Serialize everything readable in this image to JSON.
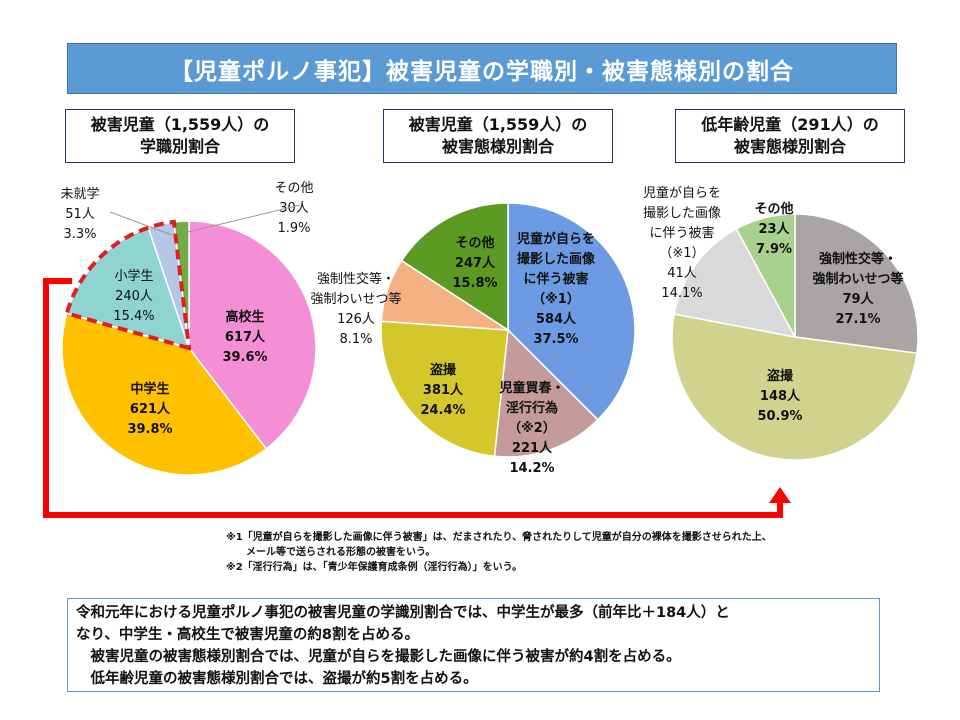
{
  "title": "【児童ポルノ事犯】被害児童の学職別・被害態様別の割合",
  "chart_data": [
    {
      "type": "pie",
      "title_line1": "被害児童（1,559人）の",
      "title_line2": "学職別割合",
      "slices": [
        {
          "name": "高校生",
          "count": "617人",
          "percent": 39.6,
          "percent_label": "39.6%",
          "color": "#f48fd6"
        },
        {
          "name": "中学生",
          "count": "621人",
          "percent": 39.8,
          "percent_label": "39.8%",
          "color": "#ffc000"
        },
        {
          "name": "小学生",
          "count": "240人",
          "percent": 15.4,
          "percent_label": "15.4%",
          "color": "#8fd3d3"
        },
        {
          "name": "未就学",
          "count": "51人",
          "percent": 3.3,
          "percent_label": "3.3%",
          "color": "#b4c7e7"
        },
        {
          "name": "その他",
          "count": "30人",
          "percent": 1.9,
          "percent_label": "1.9%",
          "color": "#70ad47"
        }
      ]
    },
    {
      "type": "pie",
      "title_line1": "被害児童（1,559人）の",
      "title_line2": "被害態様別割合",
      "slices": [
        {
          "name": "児童が自らを撮影した画像に伴う被害（※1）",
          "name_lines": [
            "児童が自らを",
            "撮影した画像",
            "に伴う被害",
            "（※1）"
          ],
          "count": "584人",
          "percent": 37.5,
          "percent_label": "37.5%",
          "color": "#6c9be4"
        },
        {
          "name": "児童買春・淫行行為（※2）",
          "name_lines": [
            "児童買春・",
            "淫行行為",
            "（※2）"
          ],
          "count": "221人",
          "percent": 14.2,
          "percent_label": "14.2%",
          "color": "#c49a9a"
        },
        {
          "name": "盗撮",
          "name_lines": [
            "盗撮"
          ],
          "count": "381人",
          "percent": 24.4,
          "percent_label": "24.4%",
          "color": "#d4c72a"
        },
        {
          "name": "強制性交等・強制わいせつ等",
          "name_lines": [
            "強制性交等・",
            "強制わいせつ等"
          ],
          "count": "126人",
          "percent": 8.1,
          "percent_label": "8.1%",
          "color": "#f4b183"
        },
        {
          "name": "その他",
          "name_lines": [
            "その他"
          ],
          "count": "247人",
          "percent": 15.8,
          "percent_label": "15.8%",
          "color": "#5b9a23"
        }
      ]
    },
    {
      "type": "pie",
      "title_line1": "低年齢児童（291人）の",
      "title_line2": "被害態様別割合",
      "slices": [
        {
          "name": "強制性交等・強制わいせつ等",
          "name_lines": [
            "強制性交等・",
            "強制わいせつ等"
          ],
          "count": "79人",
          "percent": 27.1,
          "percent_label": "27.1%",
          "color": "#aaa5a5"
        },
        {
          "name": "盗撮",
          "name_lines": [
            "盗撮"
          ],
          "count": "148人",
          "percent": 50.9,
          "percent_label": "50.9%",
          "color": "#cfd38e"
        },
        {
          "name": "児童が自らを撮影した画像に伴う被害（※1）",
          "name_lines": [
            "児童が自らを",
            "撮影した画像",
            "に伴う被害",
            "（※1）"
          ],
          "count": "41人",
          "percent": 14.1,
          "percent_label": "14.1%",
          "color": "#d9d9d9"
        },
        {
          "name": "その他",
          "name_lines": [
            "その他"
          ],
          "count": "23人",
          "percent": 7.9,
          "percent_label": "7.9%",
          "color": "#a9d18e"
        }
      ]
    }
  ],
  "notes": [
    "※1「児童が自らを撮影した画像に伴う被害」は、だまされたり、脅されたりして児童が自分の裸体を撮影させられた上、",
    "　　メール等で送らされる形態の被害をいう。",
    "※2「淫行行為」は、「青少年保護育成条例（淫行行為）」をいう。"
  ],
  "summary": [
    "令和元年における児童ポルノ事犯の被害児童の学識別割合では、中学生が最多（前年比＋184人）と",
    "なり、中学生・高校生で被害児童の約8割を占める。",
    "　被害児童の被害態様別割合では、児童が自らを撮影した画像に伴う被害が約4割を占める。",
    "　低年齢児童の被害態様別割合では、盗撮が約5割を占める。"
  ],
  "colors": {
    "title_bg": "#5b9bd5",
    "arrow": "#ff0000",
    "highlight_dash": "#e02020"
  }
}
